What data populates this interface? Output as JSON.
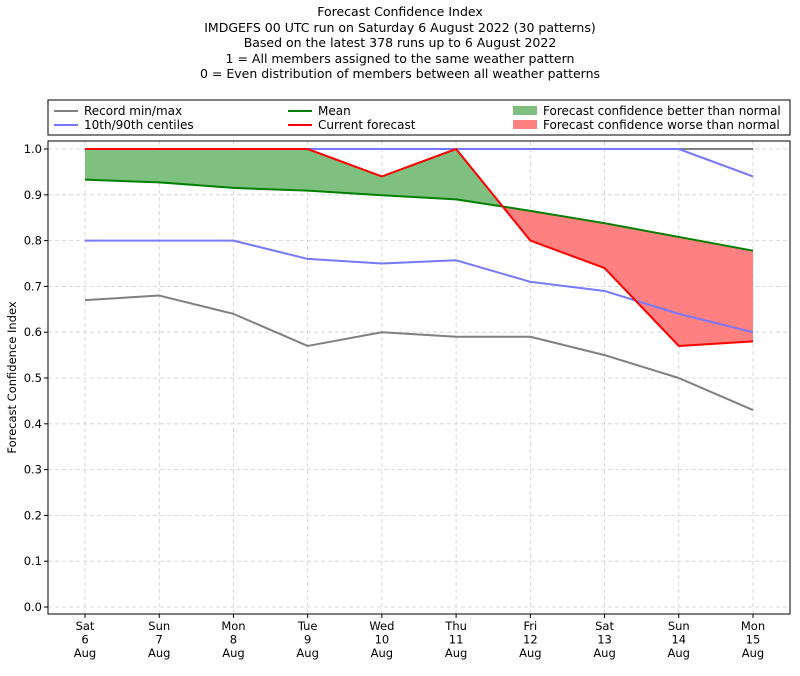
{
  "chart_data": {
    "type": "line",
    "title": "Forecast Confidence Index",
    "subtitle_lines": [
      "IMDGEFS 00 UTC run on Saturday 6 August 2022 (30 patterns)",
      "Based on the latest 378 runs up to 6 August 2022",
      "1 = All members assigned to the same weather pattern",
      "0 = Even distribution of members between all weather patterns"
    ],
    "xlabel": "",
    "ylabel": "Forecast Confidence Index",
    "ylim": [
      0,
      1.0
    ],
    "yticks": [
      "0.0",
      "0.1",
      "0.2",
      "0.3",
      "0.4",
      "0.5",
      "0.6",
      "0.7",
      "0.8",
      "0.9",
      "1.0"
    ],
    "categories": [
      [
        "Sat",
        "6",
        "Aug"
      ],
      [
        "Sun",
        "7",
        "Aug"
      ],
      [
        "Mon",
        "8",
        "Aug"
      ],
      [
        "Tue",
        "9",
        "Aug"
      ],
      [
        "Wed",
        "10",
        "Aug"
      ],
      [
        "Thu",
        "11",
        "Aug"
      ],
      [
        "Fri",
        "12",
        "Aug"
      ],
      [
        "Sat",
        "13",
        "Aug"
      ],
      [
        "Sun",
        "14",
        "Aug"
      ],
      [
        "Mon",
        "15",
        "Aug"
      ]
    ],
    "grid": true,
    "legend_position": "top",
    "series": [
      {
        "name": "Record min/max",
        "role": "record_min",
        "color": "#808080",
        "values": [
          0.67,
          0.68,
          0.64,
          0.57,
          0.6,
          0.59,
          0.59,
          0.55,
          0.5,
          0.43
        ]
      },
      {
        "name": "Record min/max",
        "role": "record_max",
        "color": "#808080",
        "values": [
          1.0,
          1.0,
          1.0,
          1.0,
          1.0,
          1.0,
          1.0,
          1.0,
          1.0,
          1.0
        ]
      },
      {
        "name": "10th/90th centiles",
        "role": "p10",
        "color": "#7777ff",
        "values": [
          0.8,
          0.8,
          0.8,
          0.76,
          0.75,
          0.757,
          0.71,
          0.69,
          0.64,
          0.6
        ]
      },
      {
        "name": "10th/90th centiles",
        "role": "p90",
        "color": "#7777ff",
        "values": [
          1.0,
          1.0,
          1.0,
          1.0,
          1.0,
          1.0,
          1.0,
          1.0,
          1.0,
          0.94
        ]
      },
      {
        "name": "Mean",
        "role": "mean",
        "color": "#008000",
        "values": [
          0.933,
          0.927,
          0.915,
          0.909,
          0.899,
          0.89,
          0.865,
          0.838,
          0.808,
          0.778
        ]
      },
      {
        "name": "Current forecast",
        "role": "current",
        "color": "#ff0000",
        "values": [
          1.0,
          1.0,
          1.0,
          1.0,
          0.94,
          1.0,
          0.8,
          0.74,
          0.57,
          0.58
        ]
      }
    ],
    "legend": [
      {
        "label": "Record min/max",
        "kind": "line",
        "color": "#808080"
      },
      {
        "label": "10th/90th centiles",
        "kind": "line",
        "color": "#7777ff"
      },
      {
        "label": "Mean",
        "kind": "line",
        "color": "#008000"
      },
      {
        "label": "Current forecast",
        "kind": "line",
        "color": "#ff0000"
      },
      {
        "label": "Forecast confidence better than normal",
        "kind": "patch",
        "color": "#7fbf7f"
      },
      {
        "label": "Forecast confidence worse than normal",
        "kind": "patch",
        "color": "#ff8080"
      }
    ],
    "fills": {
      "better_color": "#7fbf7f",
      "worse_color": "#ff8080"
    }
  }
}
